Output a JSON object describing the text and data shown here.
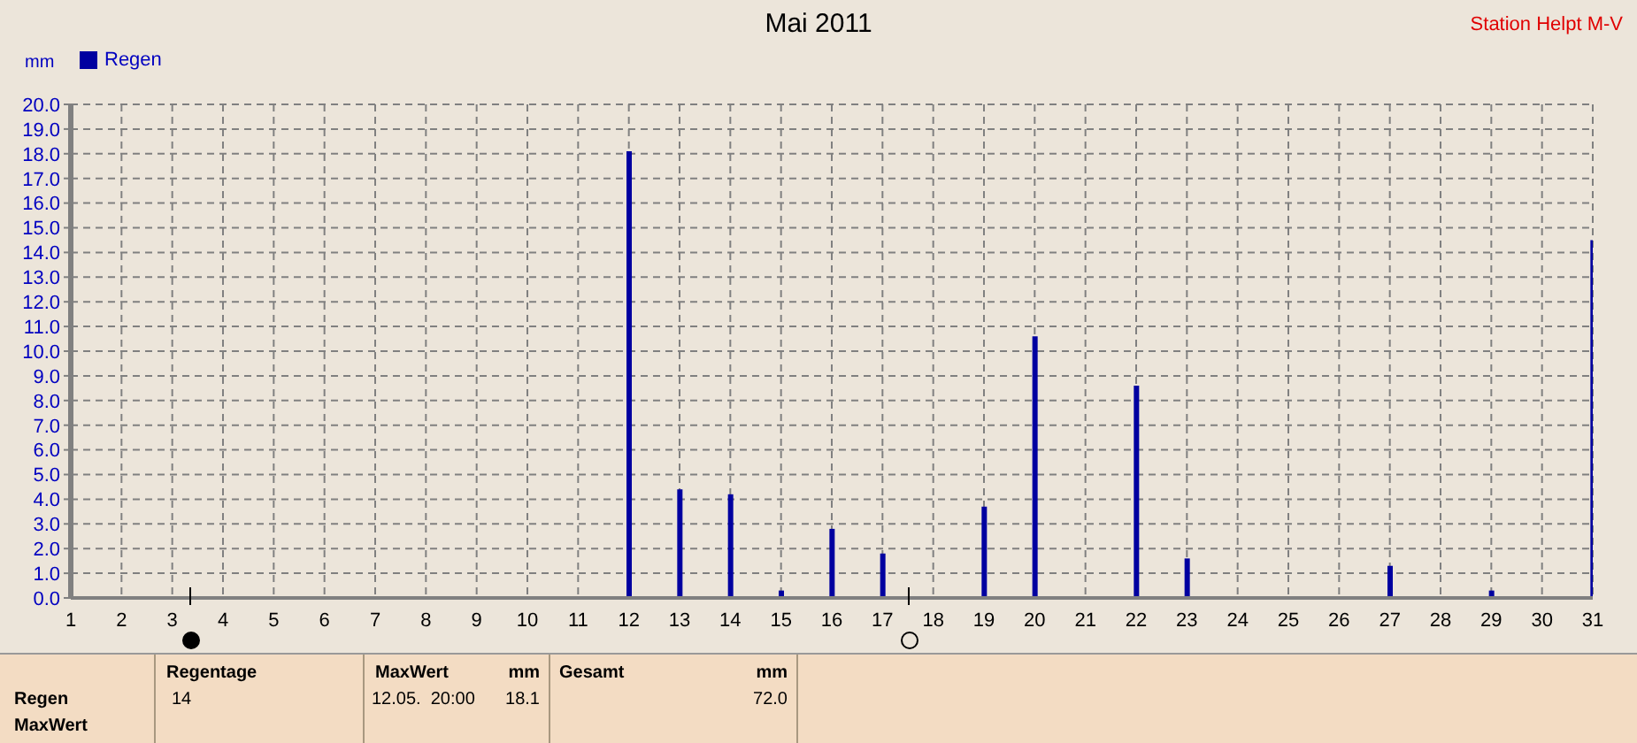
{
  "chart_data": {
    "type": "bar",
    "title": "Mai 2011",
    "subtitle": "Station Helpt M-V",
    "ylabel": "mm",
    "x": [
      12,
      13,
      14,
      15,
      16,
      17,
      19,
      20,
      22,
      23,
      27,
      29,
      31
    ],
    "series": [
      {
        "name": "Regen",
        "color": "#0000a0",
        "values": [
          18.1,
          4.4,
          4.2,
          0.3,
          2.8,
          1.8,
          3.7,
          10.6,
          8.6,
          1.6,
          1.3,
          0.3,
          14.5
        ]
      }
    ],
    "xlim": [
      1,
      31
    ],
    "xticks": [
      1,
      2,
      3,
      4,
      5,
      6,
      7,
      8,
      9,
      10,
      11,
      12,
      13,
      14,
      15,
      16,
      17,
      18,
      19,
      20,
      21,
      22,
      23,
      24,
      25,
      26,
      27,
      28,
      29,
      30,
      31
    ],
    "ylim": [
      0,
      20
    ],
    "yticks": [
      {
        "value": 0,
        "label": "0.0"
      },
      {
        "value": 1,
        "label": "1.0"
      },
      {
        "value": 2,
        "label": "2.0"
      },
      {
        "value": 3,
        "label": "3.0"
      },
      {
        "value": 4,
        "label": "4.0"
      },
      {
        "value": 5,
        "label": "5.0"
      },
      {
        "value": 6,
        "label": "6.0"
      },
      {
        "value": 7,
        "label": "7.0"
      },
      {
        "value": 8,
        "label": "8.0"
      },
      {
        "value": 9,
        "label": "9.0"
      },
      {
        "value": 10,
        "label": "10.0"
      },
      {
        "value": 11,
        "label": "11.0"
      },
      {
        "value": 12,
        "label": "12.0"
      },
      {
        "value": 13,
        "label": "13.0"
      },
      {
        "value": 14,
        "label": "14.0"
      },
      {
        "value": 15,
        "label": "15.0"
      },
      {
        "value": 16,
        "label": "16.0"
      },
      {
        "value": 17,
        "label": "17.0"
      },
      {
        "value": 18,
        "label": "18.0"
      },
      {
        "value": 19,
        "label": "19.0"
      },
      {
        "value": 20,
        "label": "20.0"
      }
    ],
    "grid": true,
    "legend": "top left",
    "annotations": [
      "Regen",
      "MaxWert",
      "Regentage",
      "14",
      "MaxWert",
      "mm",
      "12.05.  20:00",
      "18.1",
      "Gesamt",
      "mm",
      "72.0"
    ]
  }
}
